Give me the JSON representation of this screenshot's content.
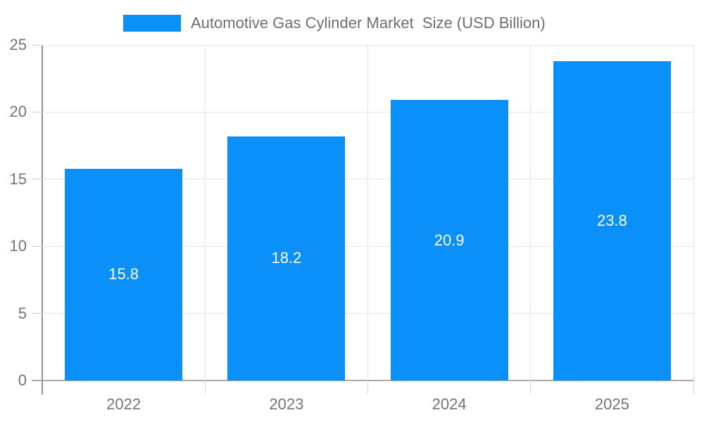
{
  "chart_data": {
    "type": "bar",
    "title": "Automotive Gas Cylinder Market  Size (USD Billion)",
    "categories": [
      "2022",
      "2023",
      "2024",
      "2025"
    ],
    "values": [
      15.8,
      18.2,
      20.9,
      23.8
    ],
    "value_labels": [
      "15.8",
      "18.2",
      "20.9",
      "23.8"
    ],
    "y_ticks": [
      "0",
      "5",
      "10",
      "15",
      "20",
      "25"
    ],
    "ylim": [
      0,
      25
    ],
    "y_step": 5,
    "xlabel": "",
    "ylabel": "",
    "grid": "on",
    "legend_position": "top",
    "colors": {
      "bar": "#0a90f8",
      "bar_label_text": "#ffffff",
      "gridline": "#e6e6e6",
      "axis_line_y": "#8f8f8f",
      "axis_line_x": "#ababab",
      "tick_label": "#757575",
      "legend_text": "#6e6e6e",
      "background": "#ffffff"
    }
  }
}
